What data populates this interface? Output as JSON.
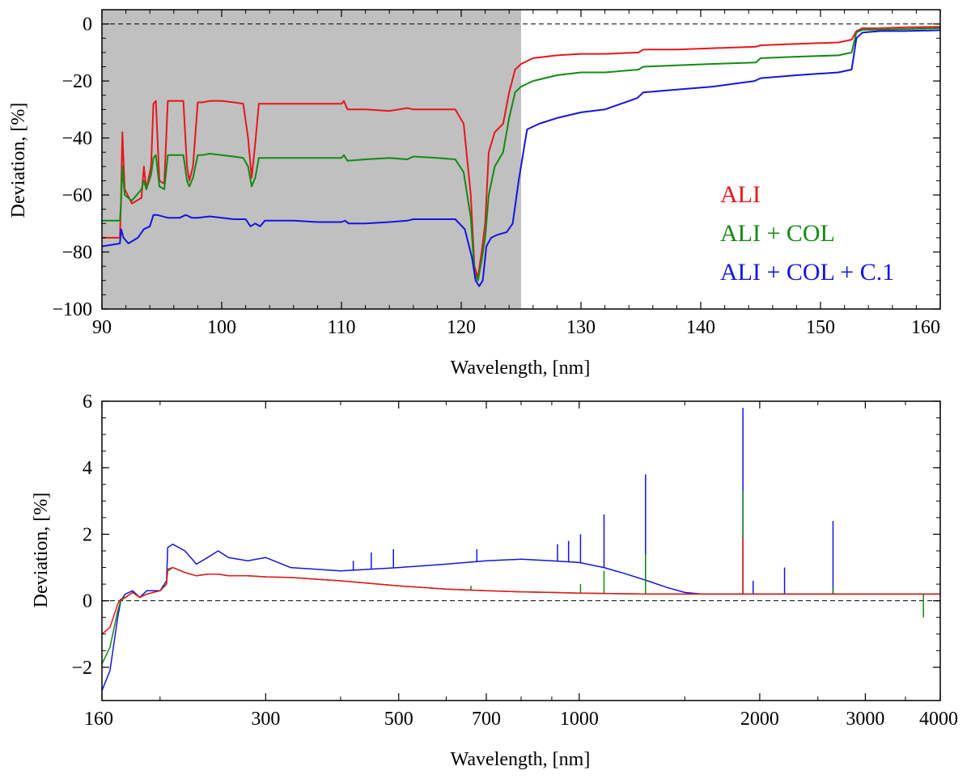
{
  "chart_data": [
    {
      "type": "line",
      "xlabel": "Wavelength, [nm]",
      "ylabel": "Deviation, [%]",
      "xlim": [
        90,
        160
      ],
      "ylim": [
        -100,
        5
      ],
      "xticks": [
        90,
        100,
        110,
        120,
        130,
        140,
        150,
        160
      ],
      "yticks": [
        0,
        -20,
        -40,
        -60,
        -80,
        -100
      ],
      "ytick_labels": [
        "0",
        "−20",
        "−40",
        "−60",
        "−80",
        "−100"
      ],
      "shaded_region": {
        "x": [
          90,
          125
        ],
        "color": "#c0c0c0"
      },
      "reference_line": {
        "y": 0,
        "style": "dashed"
      },
      "legend_position": "lower-right",
      "series": [
        {
          "name": "ALI",
          "color": "#e8161b",
          "x": [
            90,
            91.5,
            91.6,
            91.7,
            91.9,
            92.5,
            93.3,
            93.5,
            93.7,
            94.1,
            94.3,
            94.5,
            94.8,
            95.2,
            95.5,
            95.8,
            96.2,
            96.8,
            97.1,
            97.3,
            97.6,
            98,
            98.4,
            99,
            100,
            101,
            101.8,
            102.2,
            102.5,
            102.8,
            103.1,
            103.5,
            105,
            107,
            109,
            110,
            110.2,
            110.5,
            112,
            114,
            115.5,
            116,
            118,
            119.5,
            120.2,
            120.8,
            121.1,
            121.4,
            121.7,
            122,
            122.3,
            122.8,
            123.5,
            124,
            124.5,
            125,
            126,
            128,
            130,
            132,
            134.8,
            135.2,
            138,
            141,
            144.6,
            145,
            148,
            151.5,
            152.6,
            153,
            153.5,
            155,
            157,
            160
          ],
          "y": [
            -75,
            -75,
            -60,
            -38,
            -58,
            -63,
            -61,
            -50,
            -58,
            -50,
            -28,
            -27,
            -55,
            -56,
            -27,
            -27,
            -27,
            -27,
            -50,
            -55,
            -50,
            -27.5,
            -27.5,
            -27,
            -27,
            -27.5,
            -28,
            -40,
            -54,
            -42,
            -28,
            -28,
            -28,
            -28,
            -28,
            -28,
            -27,
            -30,
            -30,
            -30.5,
            -29.5,
            -30,
            -30,
            -30,
            -35,
            -60,
            -85,
            -89,
            -80,
            -70,
            -45,
            -38,
            -35,
            -24,
            -16,
            -14,
            -12,
            -11,
            -10.5,
            -10.5,
            -10,
            -9,
            -9,
            -8.5,
            -8,
            -7.5,
            -7,
            -6.5,
            -5.5,
            -2.5,
            -1.5,
            -1.5,
            -1.2,
            -1
          ],
          "approximate": true
        },
        {
          "name": "ALI + COL",
          "color": "#138a13",
          "x": [
            90,
            91.5,
            91.6,
            91.7,
            91.9,
            92.5,
            93.3,
            93.5,
            93.7,
            94.1,
            94.3,
            94.5,
            94.8,
            95.2,
            95.5,
            95.8,
            96.2,
            96.8,
            97.1,
            97.3,
            97.6,
            98,
            98.4,
            99,
            100,
            101,
            101.8,
            102.2,
            102.5,
            102.8,
            103.1,
            103.5,
            105,
            107,
            109,
            110,
            110.2,
            110.5,
            112,
            114,
            115.5,
            116,
            118,
            119.5,
            120.2,
            120.8,
            121.1,
            121.4,
            121.7,
            122,
            122.3,
            122.8,
            123.5,
            124,
            124.5,
            125,
            126,
            128,
            130,
            132,
            134.8,
            135.2,
            138,
            141,
            144.6,
            145,
            148,
            151.5,
            152.6,
            153,
            153.5,
            155,
            157,
            160
          ],
          "y": [
            -69,
            -69,
            -62,
            -50,
            -60,
            -62,
            -58,
            -55,
            -58,
            -53,
            -47,
            -46,
            -57,
            -58,
            -46,
            -46,
            -46,
            -46,
            -55,
            -57,
            -54,
            -46,
            -46,
            -45.5,
            -46,
            -46.5,
            -47,
            -50,
            -57,
            -54,
            -47,
            -47,
            -47,
            -47,
            -47,
            -47,
            -46,
            -48,
            -47.5,
            -47,
            -47.5,
            -46.5,
            -47,
            -47.5,
            -52,
            -68,
            -87,
            -90,
            -83,
            -75,
            -60,
            -50,
            -45,
            -33,
            -24,
            -22,
            -20,
            -18,
            -17,
            -17,
            -16,
            -15,
            -14.5,
            -14,
            -13.5,
            -12,
            -11.5,
            -11,
            -10,
            -3,
            -2,
            -2,
            -1.8,
            -1.5
          ],
          "approximate": true
        },
        {
          "name": "ALI + COL + C.1",
          "color": "#1414e0",
          "x": [
            90,
            91.5,
            91.6,
            91.8,
            92.2,
            93,
            93.5,
            94,
            94.3,
            94.6,
            95.5,
            96.5,
            97,
            97.5,
            98,
            99,
            100,
            101,
            102,
            102.4,
            102.8,
            103.2,
            103.6,
            104,
            106,
            108,
            110,
            110.3,
            110.6,
            112,
            114,
            115.5,
            116,
            118,
            119.5,
            120.3,
            120.9,
            121.2,
            121.5,
            121.8,
            122.1,
            122.5,
            123,
            123.8,
            124.3,
            124.8,
            125.5,
            126.5,
            128,
            130,
            132,
            134.7,
            135.2,
            138,
            141,
            144.5,
            145,
            148,
            151.5,
            152.6,
            153,
            153.5,
            155,
            157,
            160
          ],
          "y": [
            -78,
            -77,
            -72,
            -75,
            -77,
            -75,
            -72,
            -71,
            -67,
            -67,
            -68,
            -68,
            -67,
            -68,
            -68,
            -67.5,
            -68,
            -68.5,
            -68.5,
            -71,
            -70,
            -71,
            -69,
            -69,
            -69,
            -69.5,
            -69.5,
            -69,
            -70,
            -70,
            -69.5,
            -69,
            -68.5,
            -68.5,
            -68.5,
            -72,
            -82,
            -90,
            -92,
            -90,
            -78,
            -75,
            -74,
            -73,
            -70,
            -55,
            -37,
            -35,
            -33,
            -31,
            -30,
            -26,
            -24,
            -23,
            -22,
            -20,
            -19,
            -18,
            -17,
            -16,
            -5,
            -3,
            -2.5,
            -2.5,
            -2.2
          ],
          "approximate": true
        }
      ]
    },
    {
      "type": "line",
      "xlabel": "Wavelength, [nm]",
      "ylabel": "Deviation, [%]",
      "xscale": "log",
      "xlim": [
        160,
        4000
      ],
      "ylim": [
        -3,
        6
      ],
      "xticks": [
        160,
        300,
        500,
        700,
        1000,
        2000,
        3000,
        4000
      ],
      "yticks": [
        -2,
        0,
        2,
        4,
        6
      ],
      "ytick_labels": [
        "−2",
        "0",
        "2",
        "4",
        "6"
      ],
      "reference_line": {
        "y": 0,
        "style": "dashed"
      },
      "series": [
        {
          "name": "ALI + COL + C.1",
          "color": "#1414e0",
          "x": [
            160,
            165,
            170,
            172,
            175,
            180,
            185,
            190,
            200,
            205,
            206,
            210,
            220,
            230,
            240,
            250,
            260,
            280,
            300,
            330,
            400,
            500,
            600,
            700,
            800,
            900,
            1000,
            1100,
            1200,
            1300,
            1400,
            1500,
            1600,
            1700,
            1800,
            2000,
            2500,
            3000,
            3500,
            4000
          ],
          "y": [
            -2.7,
            -2.1,
            -0.5,
            0.0,
            0.2,
            0.3,
            0.1,
            0.3,
            0.3,
            0.6,
            1.6,
            1.7,
            1.5,
            1.1,
            1.3,
            1.5,
            1.3,
            1.2,
            1.3,
            1.0,
            0.9,
            1.0,
            1.1,
            1.2,
            1.25,
            1.2,
            1.15,
            1.0,
            0.8,
            0.6,
            0.4,
            0.25,
            0.2,
            0.2,
            0.2,
            0.2,
            0.2,
            0.2,
            0.2,
            0.2
          ],
          "spikes": [
            [
              420,
              1.2
            ],
            [
              450,
              1.45
            ],
            [
              490,
              1.55
            ],
            [
              675,
              1.55
            ],
            [
              920,
              1.7
            ],
            [
              960,
              1.8
            ],
            [
              1005,
              2.0
            ],
            [
              1100,
              2.6
            ],
            [
              1290,
              3.8
            ],
            [
              1875,
              5.8
            ],
            [
              1950,
              0.6
            ],
            [
              2200,
              1.0
            ],
            [
              2650,
              2.4
            ]
          ],
          "approximate": true
        },
        {
          "name": "ALI + COL",
          "color": "#138a13",
          "x": [
            160,
            165,
            170,
            172,
            175,
            180,
            185,
            190,
            200,
            205,
            206,
            210,
            220,
            230,
            240,
            250,
            260,
            280,
            300,
            330,
            400,
            500,
            600,
            700,
            800,
            900,
            1000,
            1100,
            1200,
            1300,
            1400,
            1500,
            1600,
            1700,
            1800,
            2000,
            2500,
            3000,
            3500,
            4000
          ],
          "y": [
            -1.9,
            -1.4,
            -0.3,
            0.0,
            0.1,
            0.25,
            0.1,
            0.2,
            0.3,
            0.5,
            0.9,
            1.0,
            0.85,
            0.75,
            0.8,
            0.8,
            0.75,
            0.75,
            0.72,
            0.7,
            0.6,
            0.45,
            0.35,
            0.3,
            0.27,
            0.25,
            0.23,
            0.22,
            0.21,
            0.2,
            0.2,
            0.2,
            0.2,
            0.2,
            0.2,
            0.2,
            0.2,
            0.2,
            0.2,
            0.2
          ],
          "spikes": [
            [
              660,
              0.45
            ],
            [
              1005,
              0.5
            ],
            [
              1100,
              0.9
            ],
            [
              1290,
              1.4
            ],
            [
              1875,
              3.3
            ],
            [
              2650,
              0.4
            ],
            [
              3750,
              -0.5
            ]
          ],
          "approximate": true
        },
        {
          "name": "ALI",
          "color": "#e8161b",
          "x": [
            160,
            165,
            170,
            172,
            175,
            180,
            185,
            190,
            200,
            205,
            206,
            210,
            220,
            230,
            240,
            250,
            260,
            280,
            300,
            330,
            400,
            500,
            600,
            700,
            800,
            900,
            1000,
            1100,
            1200,
            1300,
            1400,
            1500,
            1600,
            1700,
            1800,
            2000,
            2500,
            3000,
            3500,
            4000
          ],
          "y": [
            -1.0,
            -0.8,
            -0.1,
            0.05,
            0.1,
            0.25,
            0.1,
            0.2,
            0.3,
            0.5,
            0.95,
            1.0,
            0.85,
            0.75,
            0.8,
            0.8,
            0.75,
            0.75,
            0.72,
            0.7,
            0.6,
            0.45,
            0.35,
            0.3,
            0.27,
            0.25,
            0.23,
            0.22,
            0.21,
            0.2,
            0.2,
            0.2,
            0.2,
            0.2,
            0.2,
            0.2,
            0.2,
            0.2,
            0.2,
            0.2
          ],
          "spikes": [
            [
              1875,
              1.9
            ]
          ],
          "approximate": true
        }
      ]
    }
  ]
}
